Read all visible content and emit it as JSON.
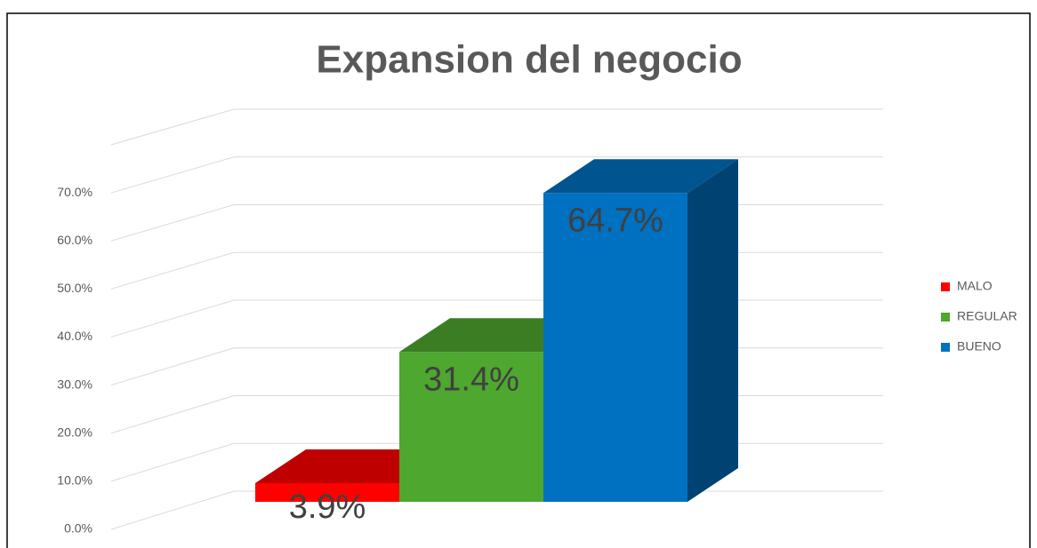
{
  "chart_data": {
    "type": "bar3d",
    "title": "Expansion del negocio",
    "categories": [
      null
    ],
    "series": [
      {
        "name": "MALO",
        "color": "#ff0000",
        "values": [
          3.9
        ],
        "value_labels": [
          "3.9%"
        ]
      },
      {
        "name": "REGULAR",
        "color": "#4ea72e",
        "values": [
          31.4
        ],
        "value_labels": [
          "31.4%"
        ]
      },
      {
        "name": "BUENO",
        "color": "#0070c0",
        "values": [
          64.7
        ],
        "value_labels": [
          "64.7%"
        ]
      }
    ],
    "ylim": [
      0,
      80
    ],
    "yticks": [
      {
        "value": 0,
        "label": "0.0%"
      },
      {
        "value": 10,
        "label": "10.0%"
      },
      {
        "value": 20,
        "label": "20.0%"
      },
      {
        "value": 30,
        "label": "30.0%"
      },
      {
        "value": 40,
        "label": "40.0%"
      },
      {
        "value": 50,
        "label": "50.0%"
      },
      {
        "value": 60,
        "label": "60.0%"
      },
      {
        "value": 70,
        "label": "70.0%"
      }
    ],
    "grid": true,
    "legend": "right"
  }
}
